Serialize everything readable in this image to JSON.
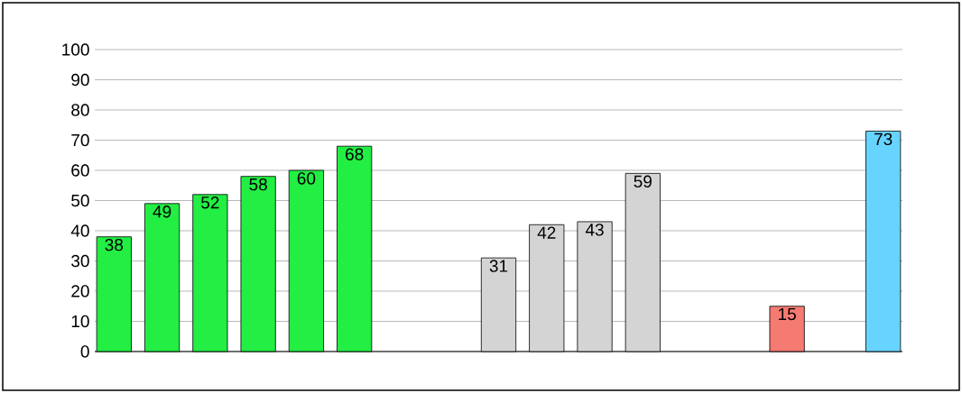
{
  "chart_data": {
    "type": "bar",
    "categories": [
      null,
      null,
      null,
      null,
      null,
      null,
      null,
      null,
      null,
      null,
      null,
      null,
      null,
      null,
      null,
      null,
      null
    ],
    "values": [
      38,
      49,
      52,
      58,
      60,
      68,
      null,
      null,
      31,
      42,
      43,
      59,
      null,
      null,
      15,
      null,
      73
    ],
    "colors": [
      "#22ee44",
      "#22ee44",
      "#22ee44",
      "#22ee44",
      "#22ee44",
      "#22ee44",
      "#22ee44",
      "#22ee44",
      "#d4d4d4",
      "#d4d4d4",
      "#d4d4d4",
      "#d4d4d4",
      "#d4d4d4",
      "#d4d4d4",
      "#f47a72",
      "#f47a72",
      "#66d4ff"
    ],
    "ylim": [
      0,
      100
    ],
    "yticks": [
      0,
      10,
      20,
      30,
      40,
      50,
      60,
      70,
      80,
      90,
      100
    ],
    "grid": "y",
    "data_labels": true,
    "tick_labels": "y"
  }
}
